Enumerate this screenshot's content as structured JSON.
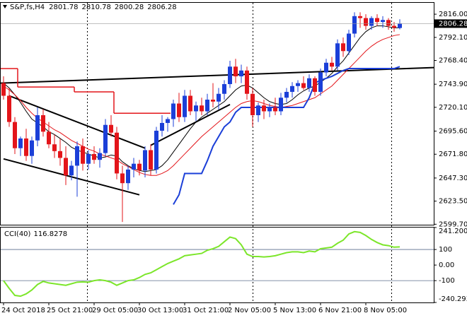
{
  "chart_data": [
    {
      "type": "candlestick",
      "title": "S&P,fs,H4",
      "categories": [
        "24 Oct 2018",
        null,
        null,
        null,
        null,
        null,
        null,
        null,
        "25 Oct 21:00",
        null,
        null,
        null,
        null,
        null,
        null,
        null,
        "29 Oct 05:00",
        null,
        null,
        null,
        null,
        null,
        null,
        null,
        "30 Oct 13:00",
        null,
        null,
        null,
        null,
        null,
        null,
        null,
        "31 Oct 21:00",
        null,
        null,
        null,
        null,
        null,
        null,
        null,
        "2 Nov 05:00",
        null,
        null,
        null,
        null,
        null,
        null,
        null,
        "5 Nov 13:00",
        null,
        null,
        null,
        null,
        null,
        null,
        null,
        "6 Nov 21:00",
        null,
        null,
        null,
        null,
        null,
        null,
        null,
        "8 Nov 05:00",
        null,
        null,
        null,
        null,
        null,
        null
      ],
      "open": [
        2745,
        2732,
        2705,
        2678,
        2688,
        2670,
        2686,
        2712,
        2695,
        2682,
        2675,
        2668,
        2650,
        2660,
        2680,
        2662,
        2672,
        2666,
        2673,
        2702,
        2694,
        2652,
        2642,
        2656,
        2662,
        2655,
        2676,
        2656,
        2696,
        2704,
        2708,
        2724,
        2710,
        2732,
        2716,
        2722,
        2716,
        2728,
        2726,
        2734,
        2744,
        2762,
        2752,
        2758,
        2734,
        2712,
        2722,
        2716,
        2720,
        2716,
        2730,
        2736,
        2742,
        2745,
        2740,
        2750,
        2736,
        2756,
        2766,
        2762,
        2786,
        2778,
        2796,
        2814,
        2812,
        2804,
        2812,
        2808,
        2810,
        2804,
        2801.78
      ],
      "high": [
        2752,
        2740,
        2710,
        2690,
        2698,
        2690,
        2720,
        2718,
        2705,
        2692,
        2688,
        2680,
        2665,
        2685,
        2688,
        2676,
        2680,
        2678,
        2708,
        2712,
        2700,
        2660,
        2660,
        2668,
        2666,
        2680,
        2682,
        2700,
        2712,
        2710,
        2728,
        2735,
        2738,
        2738,
        2726,
        2730,
        2734,
        2745,
        2740,
        2748,
        2768,
        2770,
        2764,
        2762,
        2740,
        2725,
        2728,
        2724,
        2730,
        2735,
        2740,
        2746,
        2748,
        2752,
        2754,
        2752,
        2760,
        2770,
        2772,
        2790,
        2792,
        2800,
        2818,
        2818,
        2816,
        2814,
        2816,
        2814,
        2812,
        2808,
        2810.78
      ],
      "low": [
        2728,
        2700,
        2672,
        2670,
        2665,
        2662,
        2680,
        2690,
        2678,
        2668,
        2660,
        2640,
        2645,
        2628,
        2655,
        2656,
        2662,
        2658,
        2670,
        2690,
        2646,
        2602,
        2635,
        2648,
        2650,
        2648,
        2650,
        2652,
        2690,
        2695,
        2700,
        2705,
        2705,
        2712,
        2706,
        2712,
        2712,
        2720,
        2718,
        2728,
        2740,
        2745,
        2745,
        2728,
        2700,
        2705,
        2708,
        2710,
        2712,
        2712,
        2725,
        2730,
        2736,
        2738,
        2736,
        2732,
        2732,
        2752,
        2758,
        2758,
        2772,
        2774,
        2792,
        2802,
        2800,
        2800,
        2804,
        2802,
        2800,
        2798,
        2800.28
      ],
      "close": [
        2732,
        2705,
        2678,
        2688,
        2670,
        2686,
        2712,
        2695,
        2682,
        2675,
        2668,
        2650,
        2660,
        2680,
        2662,
        2672,
        2666,
        2673,
        2702,
        2694,
        2652,
        2642,
        2656,
        2662,
        2655,
        2676,
        2656,
        2696,
        2704,
        2708,
        2724,
        2710,
        2732,
        2716,
        2722,
        2716,
        2728,
        2726,
        2734,
        2744,
        2762,
        2752,
        2758,
        2734,
        2712,
        2722,
        2716,
        2720,
        2716,
        2730,
        2736,
        2742,
        2745,
        2740,
        2750,
        2736,
        2756,
        2766,
        2762,
        2786,
        2778,
        2796,
        2814,
        2812,
        2804,
        2812,
        2808,
        2810,
        2804,
        2802,
        2806.28
      ],
      "up_color": "#1b3fd8",
      "down_color": "#e3151a",
      "lines": [
        {
          "color": "#000000",
          "values": [
            2745,
            2740,
            2733,
            2725,
            2716,
            2708,
            2704,
            2700,
            2695,
            2692,
            2688,
            2684,
            2679,
            2676,
            2674,
            2672,
            2670,
            2668,
            2669,
            2671,
            2670,
            2664,
            2660,
            2657,
            2655,
            2654,
            2655,
            2656,
            2660,
            2666,
            2674,
            2682,
            2690,
            2698,
            2705,
            2710,
            2714,
            2718,
            2722,
            2726,
            2732,
            2738,
            2742,
            2743,
            2740,
            2735,
            2730,
            2726,
            2724,
            2723,
            2724,
            2728,
            2733,
            2737,
            2740,
            2742,
            2746,
            2750,
            2755,
            2762,
            2768,
            2776,
            2784,
            2792,
            2798,
            2802,
            2804,
            2804,
            2803,
            2802,
            2802
          ]
        },
        {
          "color": "#e3151a",
          "values": [
            2742,
            2738,
            2733,
            2727,
            2720,
            2714,
            2709,
            2705,
            2701,
            2697,
            2694,
            2690,
            2686,
            2683,
            2680,
            2677,
            2675,
            2672,
            2670,
            2668,
            2666,
            2662,
            2659,
            2656,
            2653,
            2651,
            2650,
            2650,
            2652,
            2655,
            2660,
            2666,
            2672,
            2678,
            2684,
            2690,
            2695,
            2700,
            2705,
            2710,
            2715,
            2720,
            2724,
            2726,
            2727,
            2726,
            2724,
            2722,
            2721,
            2720,
            2721,
            2722,
            2724,
            2726,
            2728,
            2730,
            2734,
            2738,
            2742,
            2748,
            2754,
            2760,
            2766,
            2772,
            2778,
            2783,
            2787,
            2790,
            2792,
            2794,
            2795
          ]
        },
        {
          "color": "#1b3fd8",
          "values": [
            null,
            null,
            null,
            null,
            null,
            null,
            null,
            null,
            null,
            null,
            null,
            null,
            null,
            null,
            null,
            null,
            null,
            null,
            null,
            null,
            null,
            null,
            null,
            null,
            null,
            null,
            null,
            null,
            null,
            null,
            2620,
            2630,
            2652,
            2652,
            2652,
            2652,
            2665,
            2680,
            2690,
            2700,
            2705,
            2715,
            2720,
            2720,
            2720,
            2720,
            2720,
            2720,
            2720,
            2720,
            2720,
            2720,
            2720,
            2720,
            2730,
            2745,
            2748,
            2750,
            2752,
            2755,
            2758,
            2760,
            2760,
            2760,
            2760,
            2760,
            2760,
            2760,
            2760,
            2760,
            2762
          ]
        },
        {
          "color": "#e3151a",
          "step": true,
          "values": [
            2760,
            2760,
            2760,
            2741,
            2741,
            2741,
            2741,
            2741,
            2741,
            2741,
            2741,
            2741,
            2741,
            2736,
            2736,
            2736,
            2736,
            2736,
            2736,
            2736,
            2714,
            2714,
            2714,
            2714,
            2714,
            2714,
            2714,
            2714,
            2714,
            2714,
            null,
            null,
            null,
            null,
            null,
            null,
            null,
            null,
            null,
            null,
            null,
            null,
            null,
            null,
            null,
            null,
            null,
            null,
            null,
            null,
            null,
            null,
            null,
            null,
            null,
            null,
            null,
            null,
            null,
            null,
            null,
            null,
            null,
            null,
            null,
            null,
            null,
            null,
            null,
            null,
            null
          ]
        }
      ],
      "trendlines": [
        {
          "x": [
            -1,
            76
          ],
          "values": [
            2745,
            2761
          ]
        },
        {
          "x": [
            1,
            25
          ],
          "values": [
            2732,
            2678
          ]
        },
        {
          "x": [
            0,
            24
          ],
          "values": [
            2667,
            2630
          ]
        },
        {
          "x": [
            26,
            40
          ],
          "values": [
            2681,
            2723
          ]
        }
      ],
      "ylim": [
        2599.2,
        2827.7
      ],
      "yticks": [
        {
          "value": 2816,
          "label": "2816.00"
        },
        {
          "value": 2792.1,
          "label": "2792.10"
        },
        {
          "value": 2768.4,
          "label": "2768.40"
        },
        {
          "value": 2743.9,
          "label": "2743.90"
        },
        {
          "value": 2720.1,
          "label": "2720.10"
        },
        {
          "value": 2695.6,
          "label": "2695.60"
        },
        {
          "value": 2671.8,
          "label": "2671.80"
        },
        {
          "value": 2647.3,
          "label": "2647.30"
        },
        {
          "value": 2623.5,
          "label": "2623.50"
        },
        {
          "value": 2599.7,
          "label": "2599.70"
        }
      ]
    },
    {
      "type": "line",
      "title": "CCI(40)",
      "color": "#7ce62a",
      "values": [
        -100,
        -150,
        -195,
        -200,
        -185,
        -160,
        -125,
        -105,
        -115,
        -120,
        -125,
        -130,
        -120,
        -110,
        -108,
        -110,
        -100,
        -95,
        -100,
        -110,
        -130,
        -115,
        -100,
        -95,
        -80,
        -60,
        -50,
        -30,
        -10,
        10,
        25,
        40,
        60,
        65,
        70,
        75,
        95,
        105,
        120,
        150,
        180,
        170,
        130,
        70,
        55,
        55,
        52,
        55,
        60,
        70,
        80,
        85,
        85,
        80,
        90,
        85,
        105,
        110,
        115,
        140,
        160,
        200,
        215,
        210,
        190,
        165,
        145,
        130,
        125,
        115,
        116.8278
      ],
      "ylim": [
        -240.2937,
        241.2001
      ],
      "yticks": [
        241.2001,
        100,
        {
          "value": 0,
          "label": "0.00"
        },
        -100,
        -240.2937
      ],
      "levels": [
        100,
        -100
      ]
    }
  ]
}
